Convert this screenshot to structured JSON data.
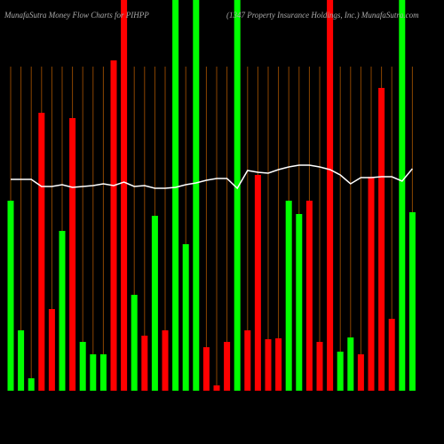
{
  "chart_data": {
    "type": "bar",
    "title": "MunafaSutra  Money Flow  Charts for PIHPP",
    "subtitle": "(1347 Property Insurance  Holdings, Inc.) MunafaSutra.com",
    "categories": [
      null,
      null,
      null,
      null,
      null,
      null,
      null,
      null,
      null,
      null,
      null,
      null,
      null,
      null,
      null,
      null,
      null,
      null,
      null,
      null,
      null,
      null,
      null,
      null,
      null,
      null,
      null,
      null,
      null,
      null,
      null,
      null,
      null,
      null,
      null,
      null,
      null,
      null,
      null,
      null
    ],
    "values": [
      214,
      68,
      14,
      313,
      92,
      180,
      307,
      55,
      41,
      41,
      372,
      440,
      108,
      62,
      197,
      68,
      440,
      165,
      440,
      49,
      6,
      55,
      440,
      68,
      243,
      58,
      59,
      214,
      199,
      214,
      55,
      440,
      44,
      60,
      41,
      241,
      341,
      81,
      440,
      201
    ],
    "bar_colors": [
      "#00ff00",
      "#00ff00",
      "#00ff00",
      "#ff0000",
      "#ff0000",
      "#00ff00",
      "#ff0000",
      "#00ff00",
      "#00ff00",
      "#00ff00",
      "#ff0000",
      "#ff0000",
      "#00ff00",
      "#ff0000",
      "#00ff00",
      "#ff0000",
      "#00ff00",
      "#00ff00",
      "#00ff00",
      "#ff0000",
      "#ff0000",
      "#ff0000",
      "#00ff00",
      "#ff0000",
      "#ff0000",
      "#ff0000",
      "#ff0000",
      "#00ff00",
      "#00ff00",
      "#ff0000",
      "#ff0000",
      "#ff0000",
      "#00ff00",
      "#00ff00",
      "#ff0000",
      "#ff0000",
      "#ff0000",
      "#ff0000",
      "#00ff00",
      "#00ff00"
    ],
    "line_values": [
      238,
      238,
      238,
      230,
      230,
      232,
      229,
      230,
      231,
      233,
      231,
      235,
      230,
      231,
      228,
      228,
      229,
      232,
      234,
      237,
      239,
      239,
      228,
      248,
      246,
      245,
      249,
      252,
      254,
      254,
      252,
      249,
      243,
      233,
      240,
      240,
      241,
      241,
      236,
      250
    ],
    "line_color": "#ffffff",
    "grid_color": "#8b4500",
    "ylim": [
      0,
      440
    ]
  }
}
